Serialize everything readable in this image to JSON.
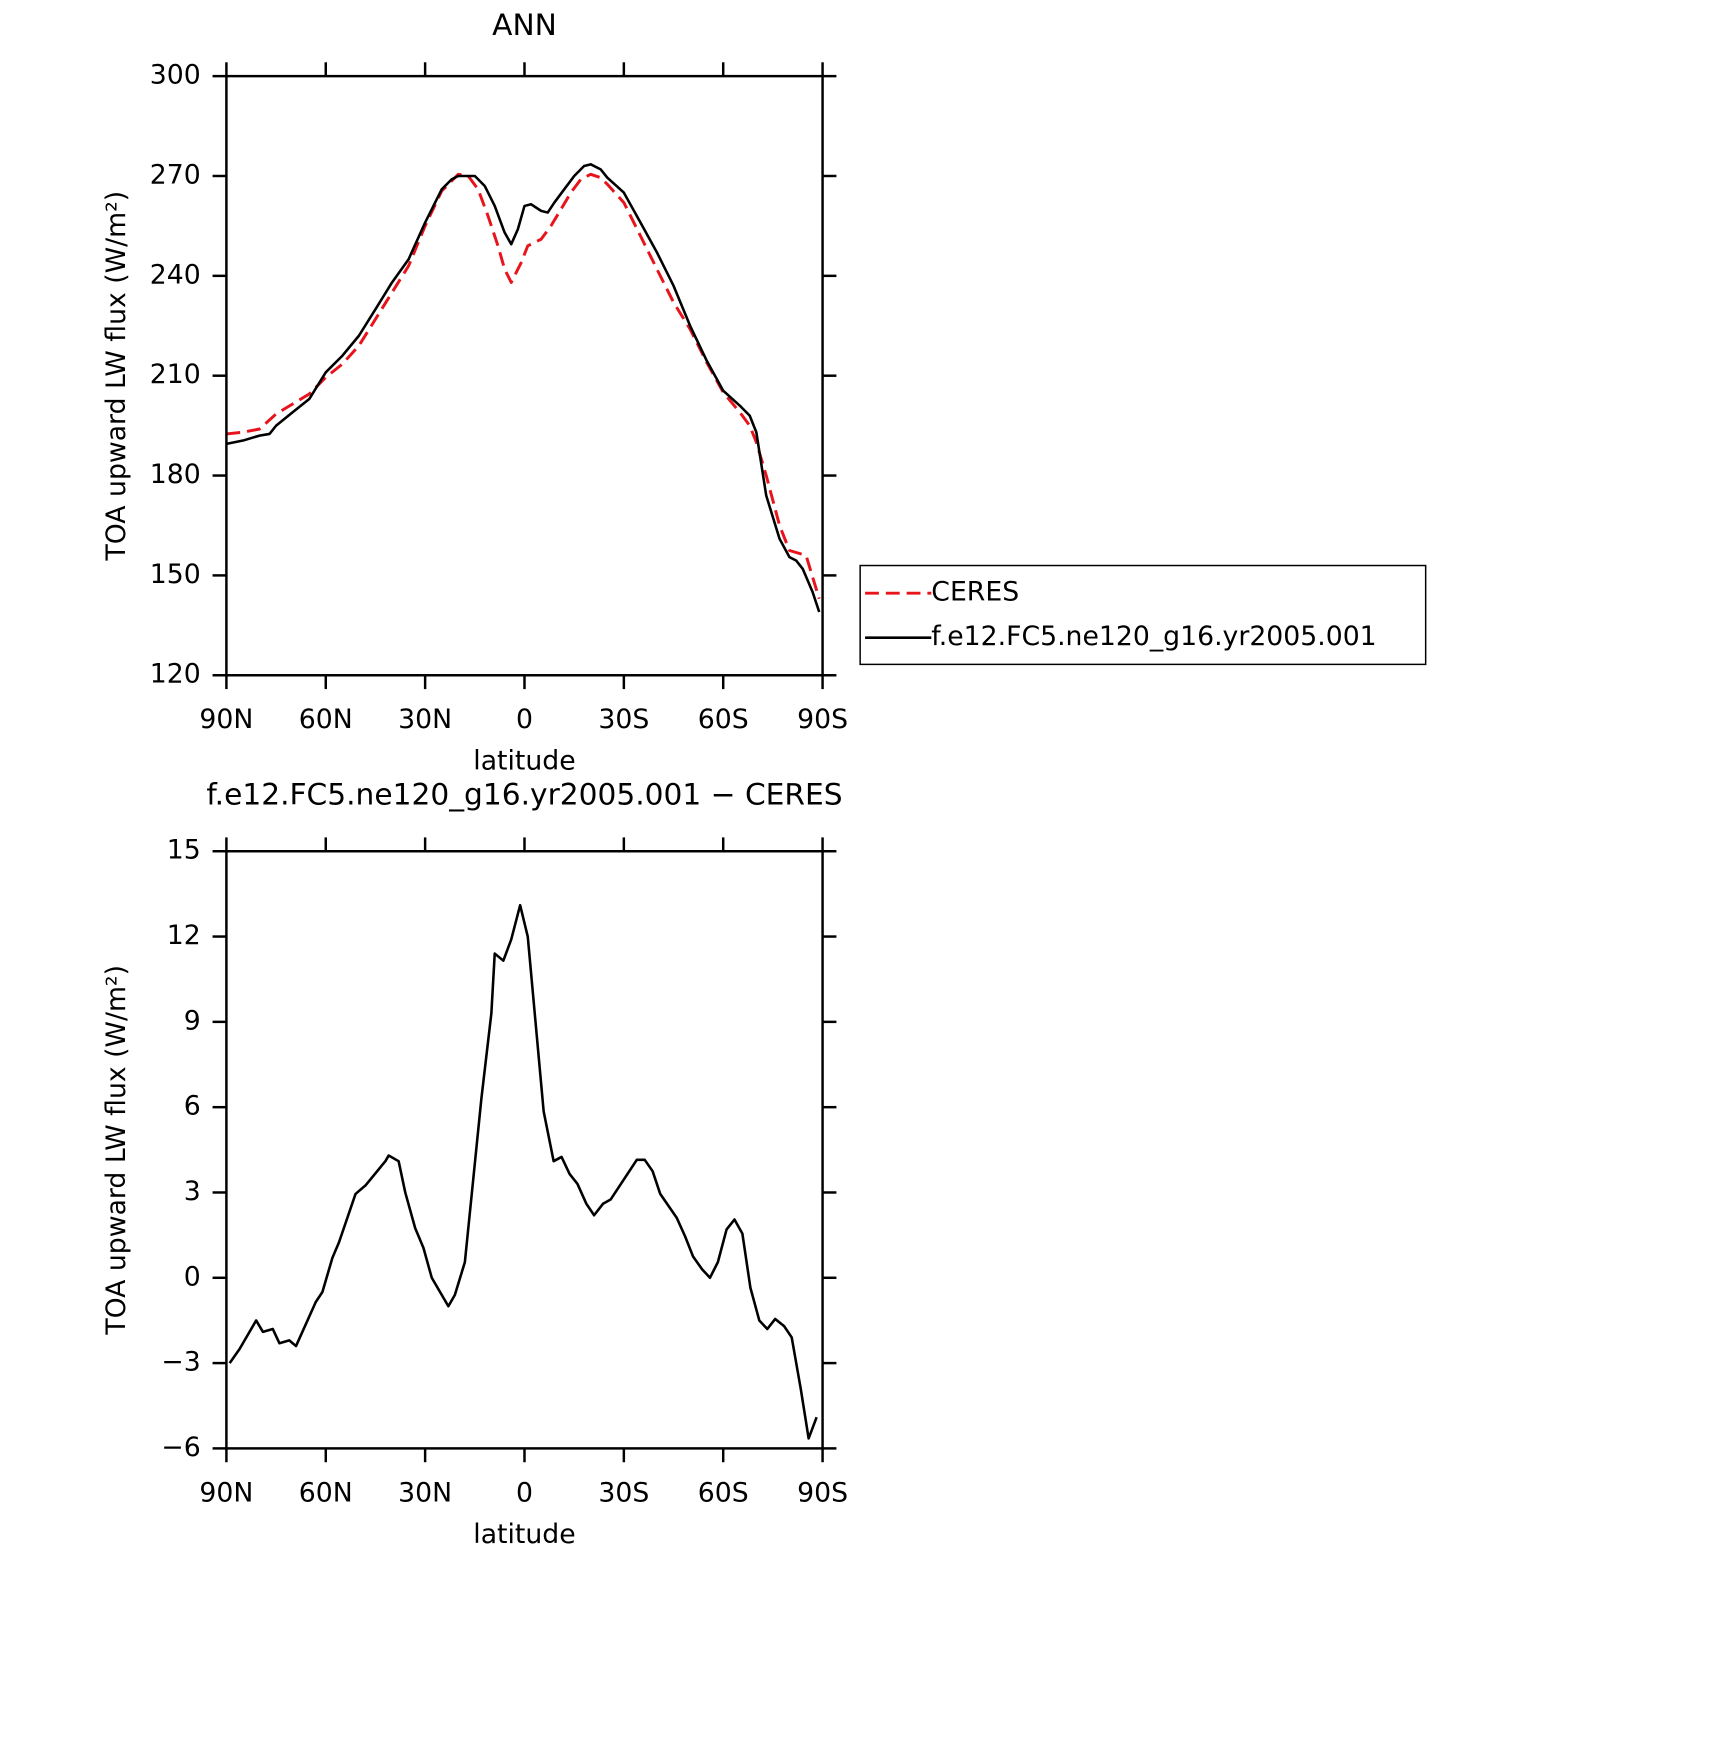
{
  "chart_data": [
    {
      "type": "line",
      "title": "ANN",
      "xlabel": "latitude",
      "ylabel": "TOA upward LW flux (W/m²)",
      "xlim": [
        90,
        -90
      ],
      "xticks": [
        {
          "value": 90,
          "label": "90N"
        },
        {
          "value": 60,
          "label": "60N"
        },
        {
          "value": 30,
          "label": "30N"
        },
        0,
        {
          "value": -30,
          "label": "30S"
        },
        {
          "value": -60,
          "label": "60S"
        },
        {
          "value": -90,
          "label": "90S"
        }
      ],
      "ylim": [
        120,
        300
      ],
      "yticks": [
        120,
        150,
        180,
        210,
        240,
        270,
        300
      ],
      "legend": "outside-right",
      "series": [
        {
          "name": "CERES",
          "color": "#e8141c",
          "dashed": true,
          "x": [
            90,
            85,
            80,
            75,
            70,
            65,
            60,
            55,
            50,
            45,
            40,
            35,
            30,
            25,
            20,
            17,
            14,
            11,
            8,
            6,
            4,
            1,
            -1,
            -3,
            -5,
            -8,
            -11,
            -14,
            -17,
            -20,
            -23,
            -25,
            -30,
            -35,
            -40,
            -45,
            -50,
            -55,
            -60,
            -65,
            -68,
            -70,
            -73,
            -77,
            -80,
            -85,
            -89
          ],
          "values": [
            192.5,
            193,
            194,
            198.5,
            201.5,
            204.5,
            209.5,
            213.5,
            219,
            227,
            235,
            243,
            255,
            265.5,
            270.5,
            270,
            266,
            258,
            249,
            242,
            238,
            244,
            249,
            250,
            251,
            255,
            260,
            265,
            269,
            270.5,
            269.5,
            267.5,
            262,
            252,
            242,
            232,
            224,
            214,
            205,
            199,
            195,
            190,
            180,
            165,
            157.5,
            156,
            143
          ]
        },
        {
          "name": "f.e12.FC5.ne120_g16.yr2005.001",
          "color": "#000000",
          "dashed": false,
          "x": [
            90,
            85,
            80,
            77,
            75,
            70,
            65,
            60,
            55,
            50,
            45,
            40,
            35,
            30,
            25,
            22,
            20,
            15,
            12,
            9,
            6,
            4,
            2,
            0,
            -2,
            -5,
            -7,
            -9,
            -12,
            -15,
            -18,
            -20,
            -23,
            -25,
            -30,
            -35,
            -40,
            -45,
            -50,
            -55,
            -60,
            -65,
            -68,
            -70,
            -73,
            -77,
            -80,
            -82,
            -84,
            -87,
            -89
          ],
          "values": [
            189.5,
            190.5,
            192,
            192.5,
            195,
            199,
            203,
            211,
            216,
            222,
            230,
            238,
            245,
            256,
            266,
            269,
            270,
            270,
            267,
            261,
            253,
            249.5,
            254,
            261,
            261.5,
            259.5,
            259,
            262,
            266,
            270,
            273,
            273.5,
            272,
            269.5,
            265,
            256,
            247,
            237,
            225,
            214.5,
            205.5,
            201,
            198,
            193,
            174,
            161,
            155.5,
            154.5,
            152,
            145,
            139
          ]
        }
      ]
    },
    {
      "type": "line",
      "title": "f.e12.FC5.ne120_g16.yr2005.001 − CERES",
      "xlabel": "latitude",
      "ylabel": "TOA upward LW flux (W/m²)",
      "xlim": [
        90,
        -90
      ],
      "xticks": [
        {
          "value": 90,
          "label": "90N"
        },
        {
          "value": 60,
          "label": "60N"
        },
        {
          "value": 30,
          "label": "30N"
        },
        0,
        {
          "value": -30,
          "label": "30S"
        },
        {
          "value": -60,
          "label": "60S"
        },
        {
          "value": -90,
          "label": "90S"
        }
      ],
      "ylim": [
        -6,
        15
      ],
      "yticks": [
        -6,
        -3,
        0,
        3,
        6,
        9,
        12,
        15
      ],
      "series": [
        {
          "color": "#000000",
          "dashed": false,
          "x": [
            89,
            86,
            81,
            79,
            76,
            74,
            71,
            69,
            63,
            61,
            58,
            56,
            51,
            48,
            42,
            41,
            38,
            36,
            33,
            30.5,
            28,
            23,
            21,
            18,
            13,
            10,
            9,
            6.4,
            4,
            1.3,
            -1,
            -5.8,
            -8.8,
            -11.2,
            -13.6,
            -16,
            -18.7,
            -21,
            -23.7,
            -26,
            -33.9,
            -36.3,
            -38.7,
            -41,
            -46,
            -48.5,
            -50.9,
            -53.6,
            -56,
            -58.4,
            -61,
            -63.4,
            -65.8,
            -68.2,
            -70.9,
            -73.3,
            -75.7,
            -78.4,
            -80.7,
            -83.4,
            -85.8,
            -88.2
          ],
          "values": [
            -3.0,
            -2.5,
            -1.5,
            -1.9,
            -1.8,
            -2.3,
            -2.2,
            -2.4,
            -0.85,
            -0.5,
            0.7,
            1.25,
            2.95,
            3.25,
            4.1,
            4.3,
            4.1,
            3.0,
            1.75,
            1.05,
            0,
            -1.0,
            -0.6,
            0.55,
            6.3,
            9.3,
            11.4,
            11.15,
            11.9,
            13.1,
            12.0,
            5.85,
            4.1,
            4.25,
            3.65,
            3.3,
            2.6,
            2.2,
            2.6,
            2.75,
            4.15,
            4.15,
            3.75,
            2.95,
            2.1,
            1.45,
            0.75,
            0.3,
            0.0,
            0.55,
            1.7,
            2.05,
            1.55,
            -0.35,
            -1.5,
            -1.8,
            -1.45,
            -1.7,
            -2.1,
            -3.9,
            -5.65,
            -4.9
          ]
        }
      ]
    }
  ]
}
